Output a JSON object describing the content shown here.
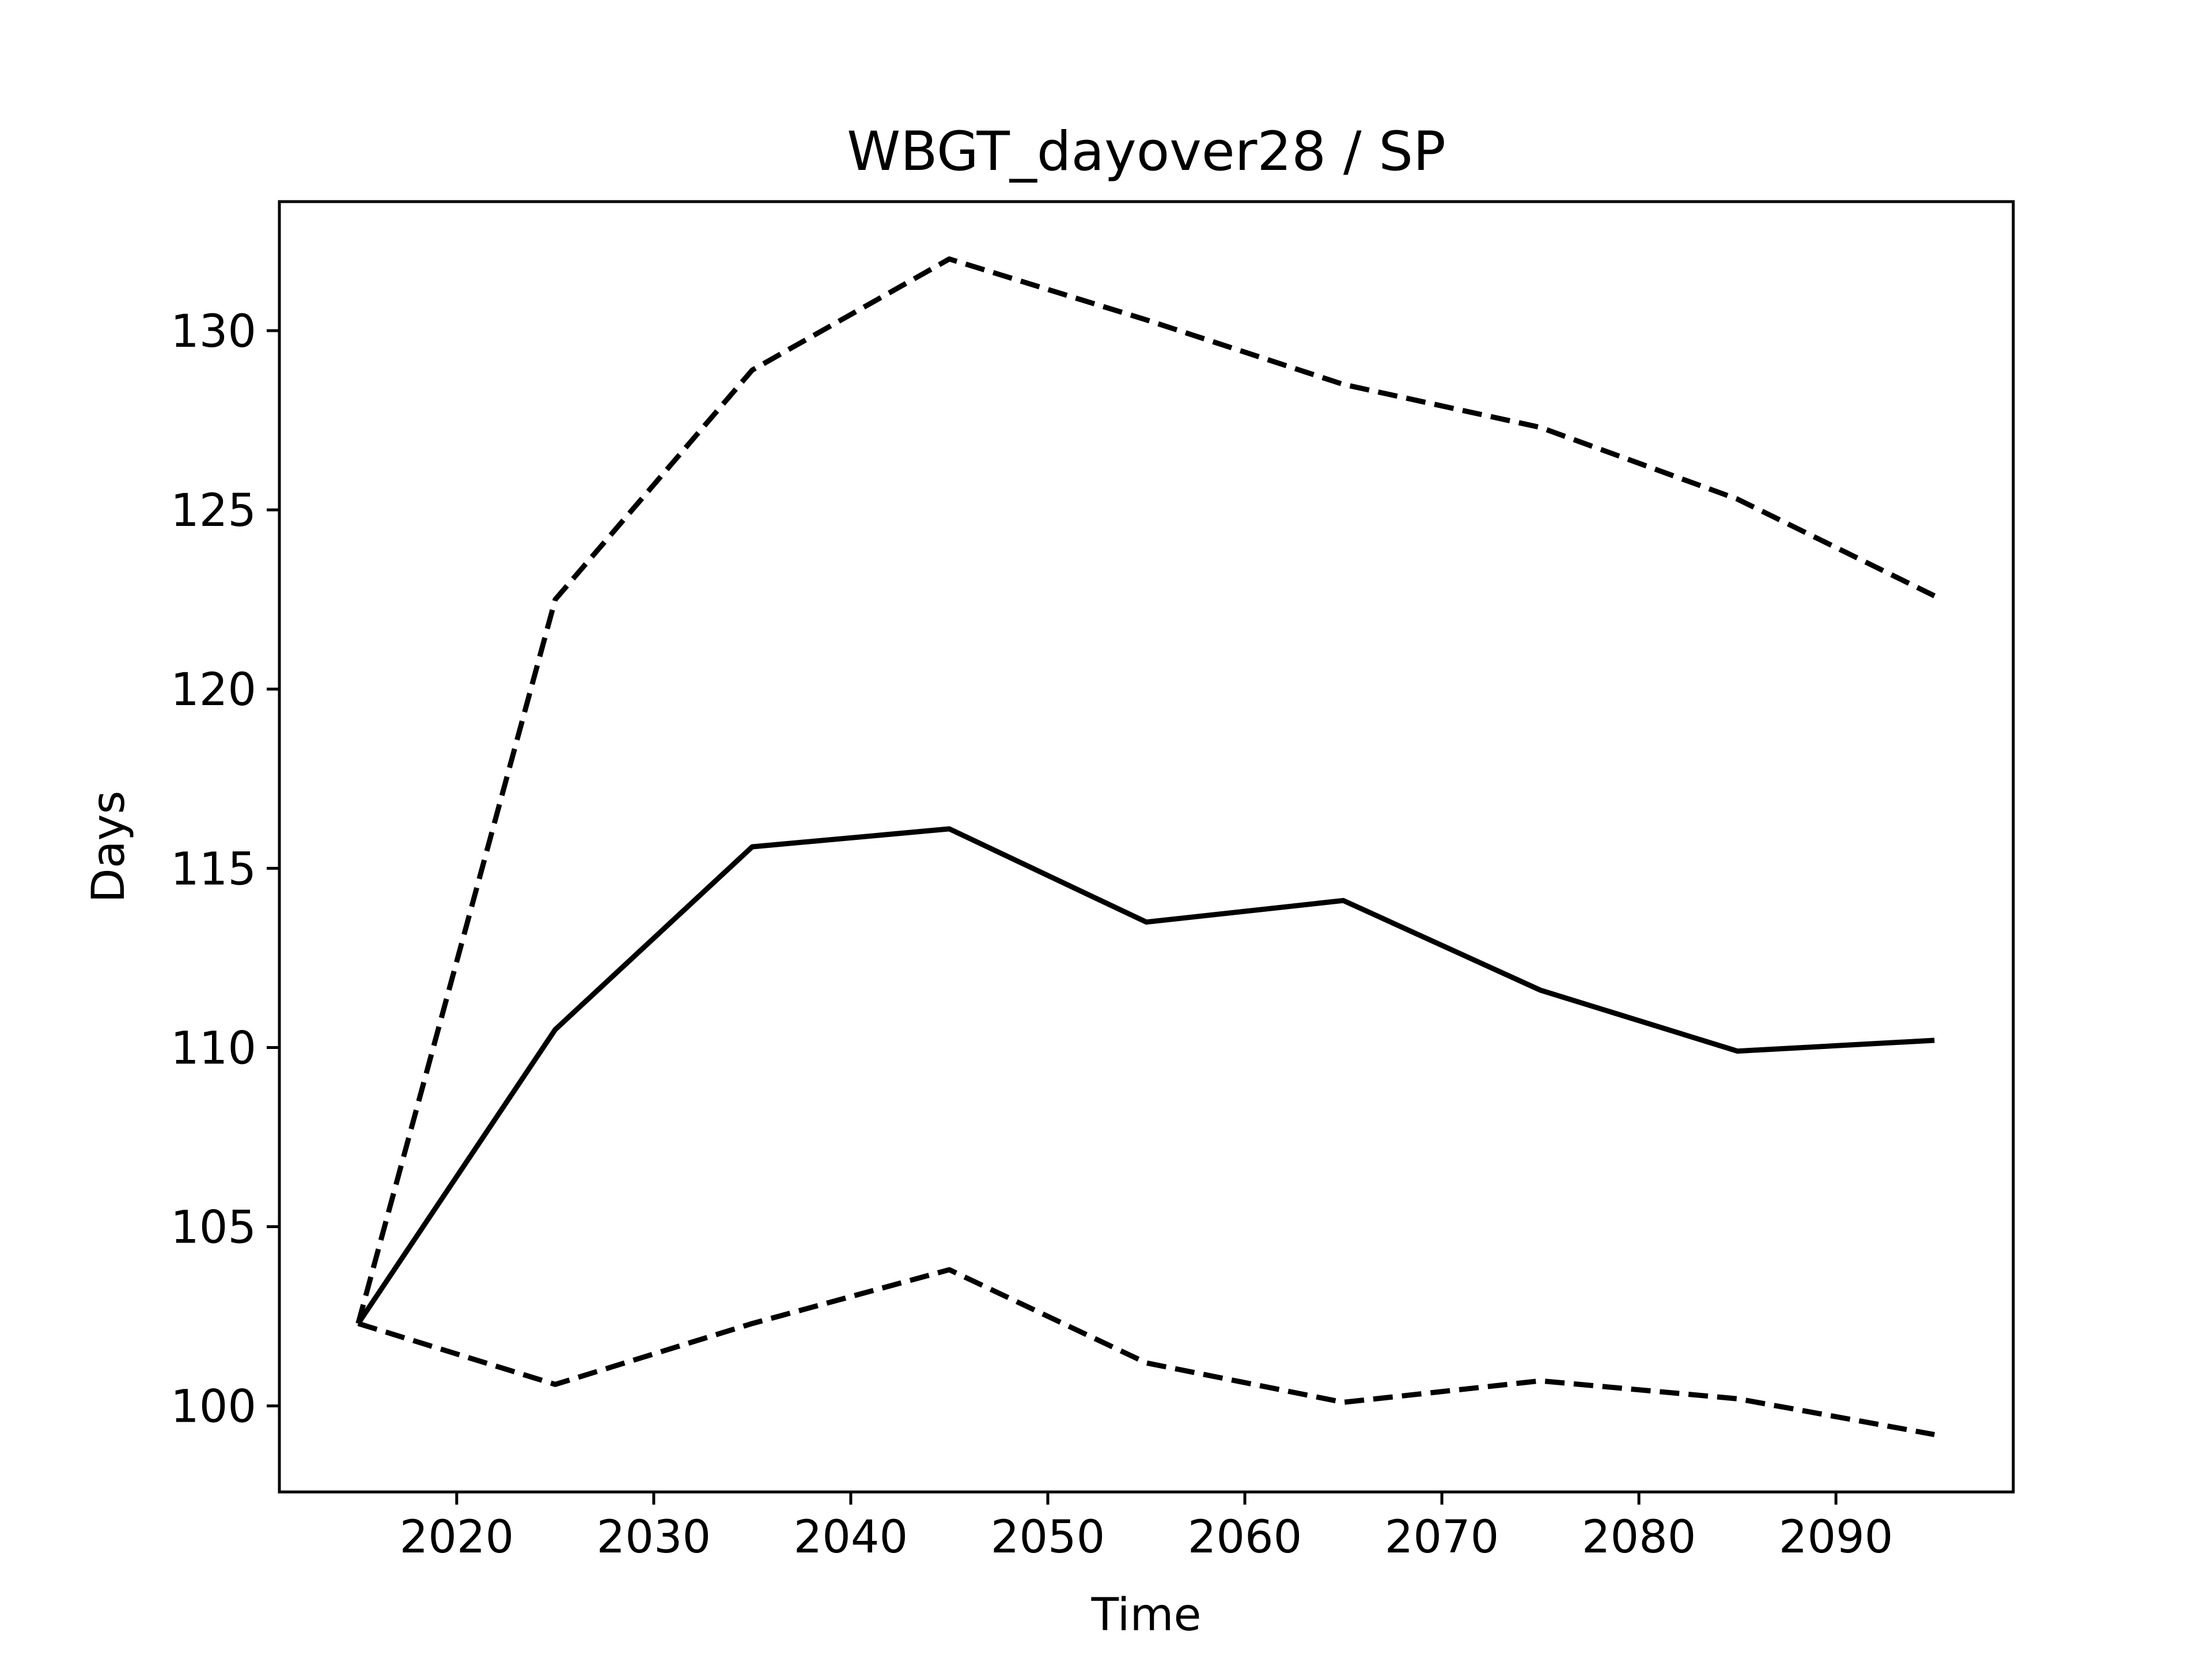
{
  "chart_data": {
    "type": "line",
    "title": "WBGT_dayover28 / SP",
    "xlabel": "Time",
    "ylabel": "Days",
    "xlim": [
      2011,
      2099
    ],
    "ylim": [
      97.6,
      133.6
    ],
    "xticks": [
      2020,
      2030,
      2040,
      2050,
      2060,
      2070,
      2080,
      2090
    ],
    "yticks": [
      100,
      105,
      110,
      115,
      120,
      125,
      130
    ],
    "grid": false,
    "x": [
      2015,
      2025,
      2035,
      2045,
      2055,
      2065,
      2075,
      2085,
      2095
    ],
    "series": [
      {
        "style": "dashed",
        "color": "#000000",
        "values": [
          102.3,
          122.5,
          128.9,
          132.0,
          130.3,
          128.5,
          127.3,
          125.3,
          122.6
        ]
      },
      {
        "style": "solid",
        "color": "#000000",
        "values": [
          102.3,
          110.5,
          115.6,
          116.1,
          113.5,
          114.1,
          111.6,
          109.9,
          110.2
        ]
      },
      {
        "style": "dashed",
        "color": "#000000",
        "values": [
          102.3,
          100.6,
          102.3,
          103.8,
          101.2,
          100.1,
          100.7,
          100.2,
          99.2
        ]
      }
    ]
  }
}
